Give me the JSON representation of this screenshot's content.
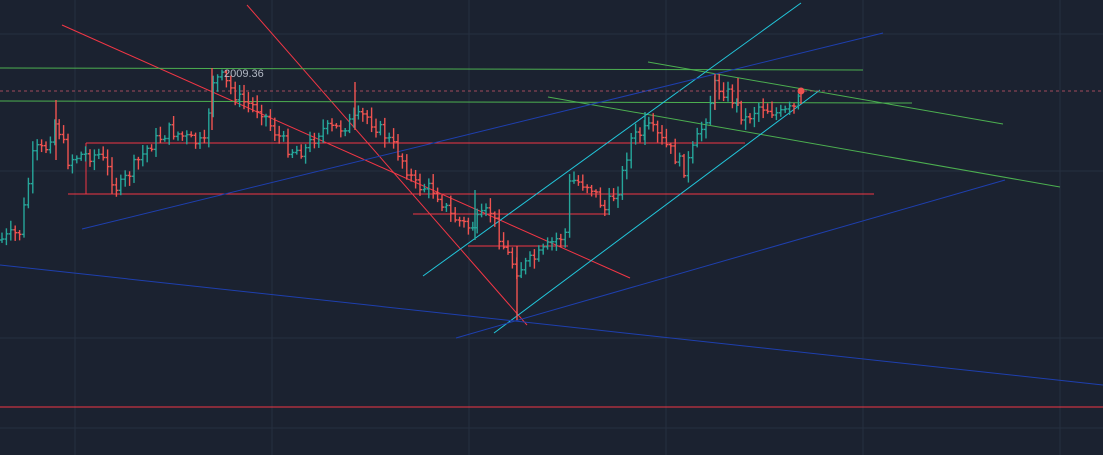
{
  "chart_data": {
    "type": "ohlc",
    "title": "",
    "xlabel": "",
    "ylabel": "",
    "grid": true,
    "legend": "none",
    "annotations": [
      {
        "text": "2009.36",
        "kind": "price-label"
      }
    ],
    "colors": {
      "background": "#1b2230",
      "grid": "#263040",
      "up": "#26a69a",
      "down": "#ef5350",
      "horizontal_level": "#f23645",
      "green_line": "#4caf50",
      "cyan_channel": "#22c6da",
      "blue_line": "#1e3fae",
      "dashed_level": "#a24a5c",
      "marker": "#ef5350"
    },
    "grid_lines": {
      "vertical_count": 6,
      "horizontal_count": 4
    }
  }
}
